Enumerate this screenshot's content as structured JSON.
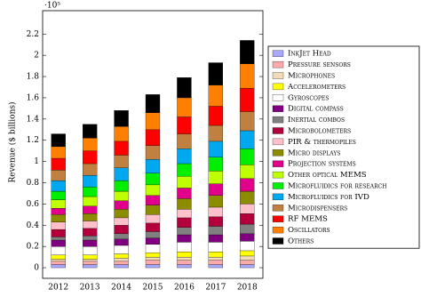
{
  "chart_data": {
    "type": "stacked_bar",
    "y_label": "Revenue ($ billions)",
    "y_scale_label": "·10⁵",
    "categories": [
      "2012",
      "2013",
      "2014",
      "2015",
      "2016",
      "2017",
      "2018"
    ],
    "ylim": [
      -0.1,
      2.42
    ],
    "yticks": [
      0,
      0.2,
      0.4,
      0.6,
      0.8,
      1,
      1.2,
      1.4,
      1.6,
      1.8,
      2,
      2.2
    ],
    "grid": false,
    "legend": "right",
    "series": [
      {
        "name": "InkJet Head",
        "color": "#a8a8ff",
        "values": [
          0.03,
          0.03,
          0.03,
          0.03,
          0.03,
          0.03,
          0.03
        ]
      },
      {
        "name": "Pressure sensors",
        "color": "#ffaaaa",
        "values": [
          0.03,
          0.03,
          0.03,
          0.04,
          0.04,
          0.04,
          0.04
        ]
      },
      {
        "name": "Microphones",
        "color": "#f2dcb8",
        "values": [
          0.02,
          0.02,
          0.03,
          0.03,
          0.03,
          0.03,
          0.04
        ]
      },
      {
        "name": "Accelerometers",
        "color": "#ffff00",
        "values": [
          0.04,
          0.04,
          0.04,
          0.04,
          0.05,
          0.05,
          0.05
        ]
      },
      {
        "name": "Gyroscopes",
        "color": "#ffffff",
        "values": [
          0.08,
          0.08,
          0.08,
          0.08,
          0.09,
          0.09,
          0.09
        ]
      },
      {
        "name": "Digital compass",
        "color": "#800080",
        "values": [
          0.06,
          0.06,
          0.06,
          0.06,
          0.07,
          0.07,
          0.07
        ]
      },
      {
        "name": "Inertial combos",
        "color": "#808080",
        "values": [
          0.03,
          0.04,
          0.05,
          0.06,
          0.07,
          0.08,
          0.09
        ]
      },
      {
        "name": "Microbolometers",
        "color": "#b3003c",
        "values": [
          0.07,
          0.07,
          0.08,
          0.08,
          0.09,
          0.09,
          0.1
        ]
      },
      {
        "name": "PIR & thermopiles",
        "color": "#ffc0cb",
        "values": [
          0.07,
          0.07,
          0.07,
          0.08,
          0.08,
          0.09,
          0.09
        ]
      },
      {
        "name": "Micro displays",
        "color": "#8c8c00",
        "values": [
          0.07,
          0.07,
          0.08,
          0.09,
          0.1,
          0.11,
          0.12
        ]
      },
      {
        "name": "Projection systems",
        "color": "#e0008c",
        "values": [
          0.06,
          0.07,
          0.08,
          0.09,
          0.1,
          0.11,
          0.12
        ]
      },
      {
        "name": "Other optical MEMS",
        "color": "#bfff00",
        "values": [
          0.08,
          0.09,
          0.09,
          0.1,
          0.11,
          0.12,
          0.13
        ]
      },
      {
        "name": "Microfluidics for research",
        "color": "#00ee00",
        "values": [
          0.08,
          0.09,
          0.1,
          0.11,
          0.12,
          0.13,
          0.15
        ]
      },
      {
        "name": "Microfluidics for IVD",
        "color": "#00a8f0",
        "values": [
          0.1,
          0.11,
          0.12,
          0.13,
          0.14,
          0.15,
          0.17
        ]
      },
      {
        "name": "Microdispensers",
        "color": "#bf8040",
        "values": [
          0.1,
          0.11,
          0.12,
          0.13,
          0.14,
          0.15,
          0.18
        ]
      },
      {
        "name": "RF MEMS",
        "color": "#ff0000",
        "values": [
          0.11,
          0.12,
          0.13,
          0.15,
          0.16,
          0.18,
          0.22
        ]
      },
      {
        "name": "Oscillators",
        "color": "#ff8000",
        "values": [
          0.11,
          0.12,
          0.14,
          0.16,
          0.18,
          0.2,
          0.23
        ]
      },
      {
        "name": "Others",
        "color": "#000000",
        "values": [
          0.12,
          0.13,
          0.15,
          0.17,
          0.19,
          0.21,
          0.22
        ]
      }
    ]
  }
}
